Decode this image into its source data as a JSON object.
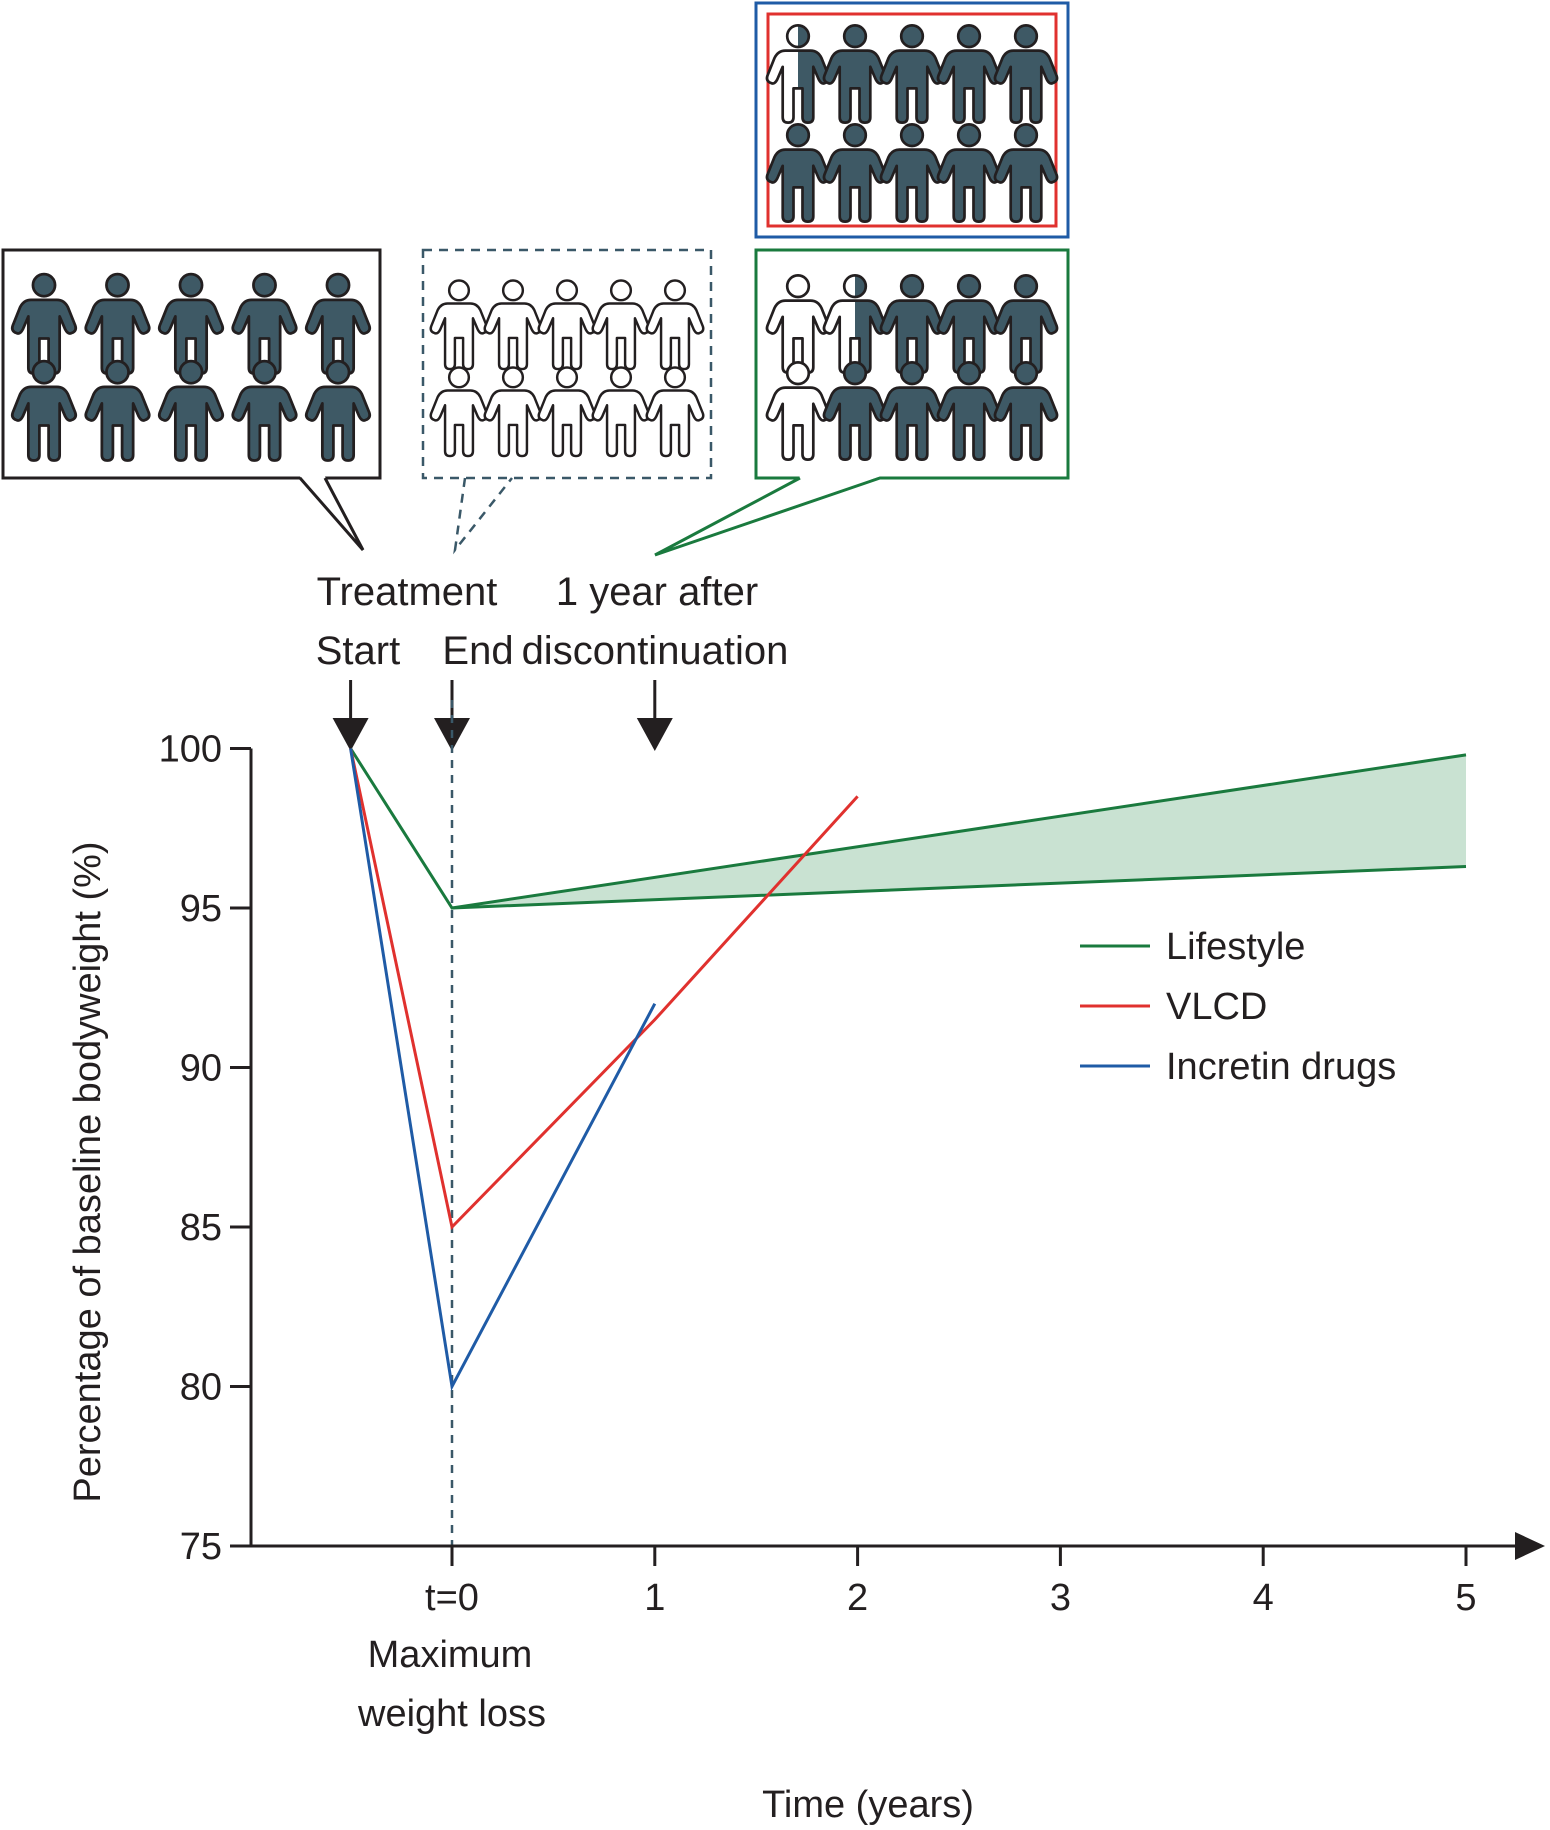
{
  "chart_data": {
    "type": "line",
    "title": "",
    "xlabel": "Time (years)",
    "ylabel": "Percentage of baseline bodyweight (%)",
    "x_ticks": [
      {
        "value": 0,
        "label": "t=0"
      },
      {
        "value": 1,
        "label": "1"
      },
      {
        "value": 2,
        "label": "2"
      },
      {
        "value": 3,
        "label": "3"
      },
      {
        "value": 4,
        "label": "4"
      },
      {
        "value": 5,
        "label": "5"
      }
    ],
    "x_tick_sublabel": [
      "Maximum",
      "weight loss"
    ],
    "y_ticks": [
      75,
      80,
      85,
      90,
      95,
      100
    ],
    "xlim": [
      -1.0,
      5.2
    ],
    "ylim": [
      75,
      100
    ],
    "grid": false,
    "legend_position": "right",
    "series": [
      {
        "name": "Lifestyle",
        "color": "#1a7a3e",
        "x": [
          -0.5,
          0,
          5
        ],
        "y": [
          100,
          95,
          99.8
        ]
      },
      {
        "name": "VLCD",
        "color": "#e0312e",
        "x": [
          -0.5,
          0,
          1,
          2
        ],
        "y": [
          100,
          85,
          91.5,
          98.5
        ]
      },
      {
        "name": "Incretin drugs",
        "color": "#1f5ba6",
        "x": [
          -0.5,
          0,
          1
        ],
        "y": [
          100,
          80,
          92
        ]
      }
    ],
    "lifestyle_band": {
      "x": [
        0,
        5
      ],
      "upper": [
        95,
        99.8
      ],
      "lower": [
        95,
        96.3
      ],
      "fill": "#c9e2d2"
    },
    "reference_line": {
      "x": 0,
      "style": "dashed"
    },
    "markers": [
      {
        "x": -0.5,
        "label": "Start",
        "group_label": "Treatment"
      },
      {
        "x": 0,
        "label": "End"
      },
      {
        "x": 1,
        "label": "discontinuation",
        "group_label": "1 year after"
      }
    ],
    "people_panels": [
      {
        "id": "start",
        "filled": [
          1,
          1,
          1,
          1,
          1,
          1,
          1,
          1,
          1,
          1
        ],
        "border": "#231f20",
        "style": "solid"
      },
      {
        "id": "end",
        "filled": [
          0,
          0,
          0,
          0,
          0,
          0,
          0,
          0,
          0,
          0
        ],
        "border": "#3a5868",
        "style": "dashed"
      },
      {
        "id": "after-vlcd-incretin",
        "filled": [
          0.5,
          1,
          1,
          1,
          1,
          1,
          1,
          1,
          1,
          1
        ],
        "border": "#1f5ba6",
        "inner_border": "#e0312e",
        "style": "solid"
      },
      {
        "id": "after-lifestyle",
        "filled": [
          0,
          0.5,
          1,
          1,
          1,
          0,
          1,
          1,
          1,
          1
        ],
        "border": "#1a7a3e",
        "style": "solid"
      }
    ],
    "colors": {
      "person_fill": "#3e5965",
      "person_outline": "#231f20",
      "axis": "#231f20"
    }
  }
}
